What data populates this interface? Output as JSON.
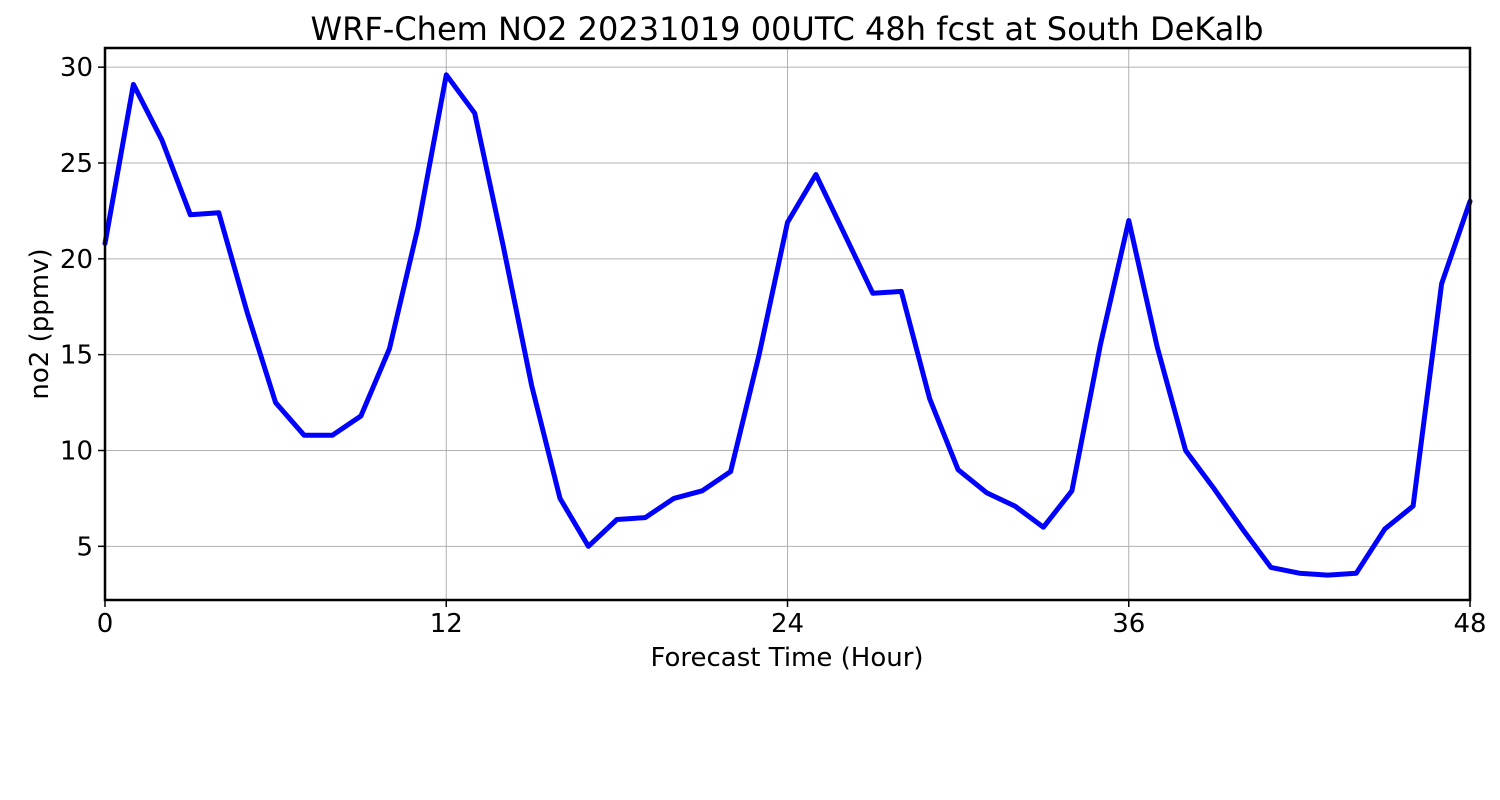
{
  "chart_data": {
    "type": "line",
    "title": "WRF-Chem NO2  20231019 00UTC 48h fcst at South DeKalb",
    "xlabel": "Forecast Time (Hour)",
    "ylabel": "no2  (ppmv)",
    "xlim": [
      0,
      48
    ],
    "ylim": [
      2.2,
      31.0
    ],
    "xticks": [
      0,
      12,
      24,
      36,
      48
    ],
    "yticks": [
      5,
      10,
      15,
      20,
      25,
      30
    ],
    "grid": true,
    "legend": "none",
    "series": [
      {
        "color": "#0000ff",
        "x": [
          0,
          1,
          2,
          3,
          4,
          5,
          6,
          7,
          8,
          9,
          10,
          11,
          12,
          13,
          14,
          15,
          16,
          17,
          18,
          19,
          20,
          21,
          22,
          23,
          24,
          25,
          26,
          27,
          28,
          29,
          30,
          31,
          32,
          33,
          34,
          35,
          36,
          37,
          38,
          39,
          40,
          41,
          42,
          43,
          44,
          45,
          46,
          47,
          48
        ],
        "y": [
          20.8,
          29.1,
          26.2,
          22.3,
          22.4,
          17.2,
          12.5,
          10.8,
          10.8,
          11.8,
          15.3,
          21.6,
          29.6,
          27.6,
          20.7,
          13.4,
          7.5,
          5.0,
          6.4,
          6.5,
          7.5,
          7.9,
          8.9,
          15.0,
          21.9,
          24.4,
          21.3,
          18.2,
          18.3,
          12.7,
          9.0,
          7.8,
          7.1,
          6.0,
          7.9,
          15.5,
          22.0,
          15.4,
          10.0,
          8.0,
          5.9,
          3.9,
          3.6,
          3.5,
          3.6,
          5.9,
          7.1,
          18.7,
          23.0
        ]
      }
    ]
  }
}
